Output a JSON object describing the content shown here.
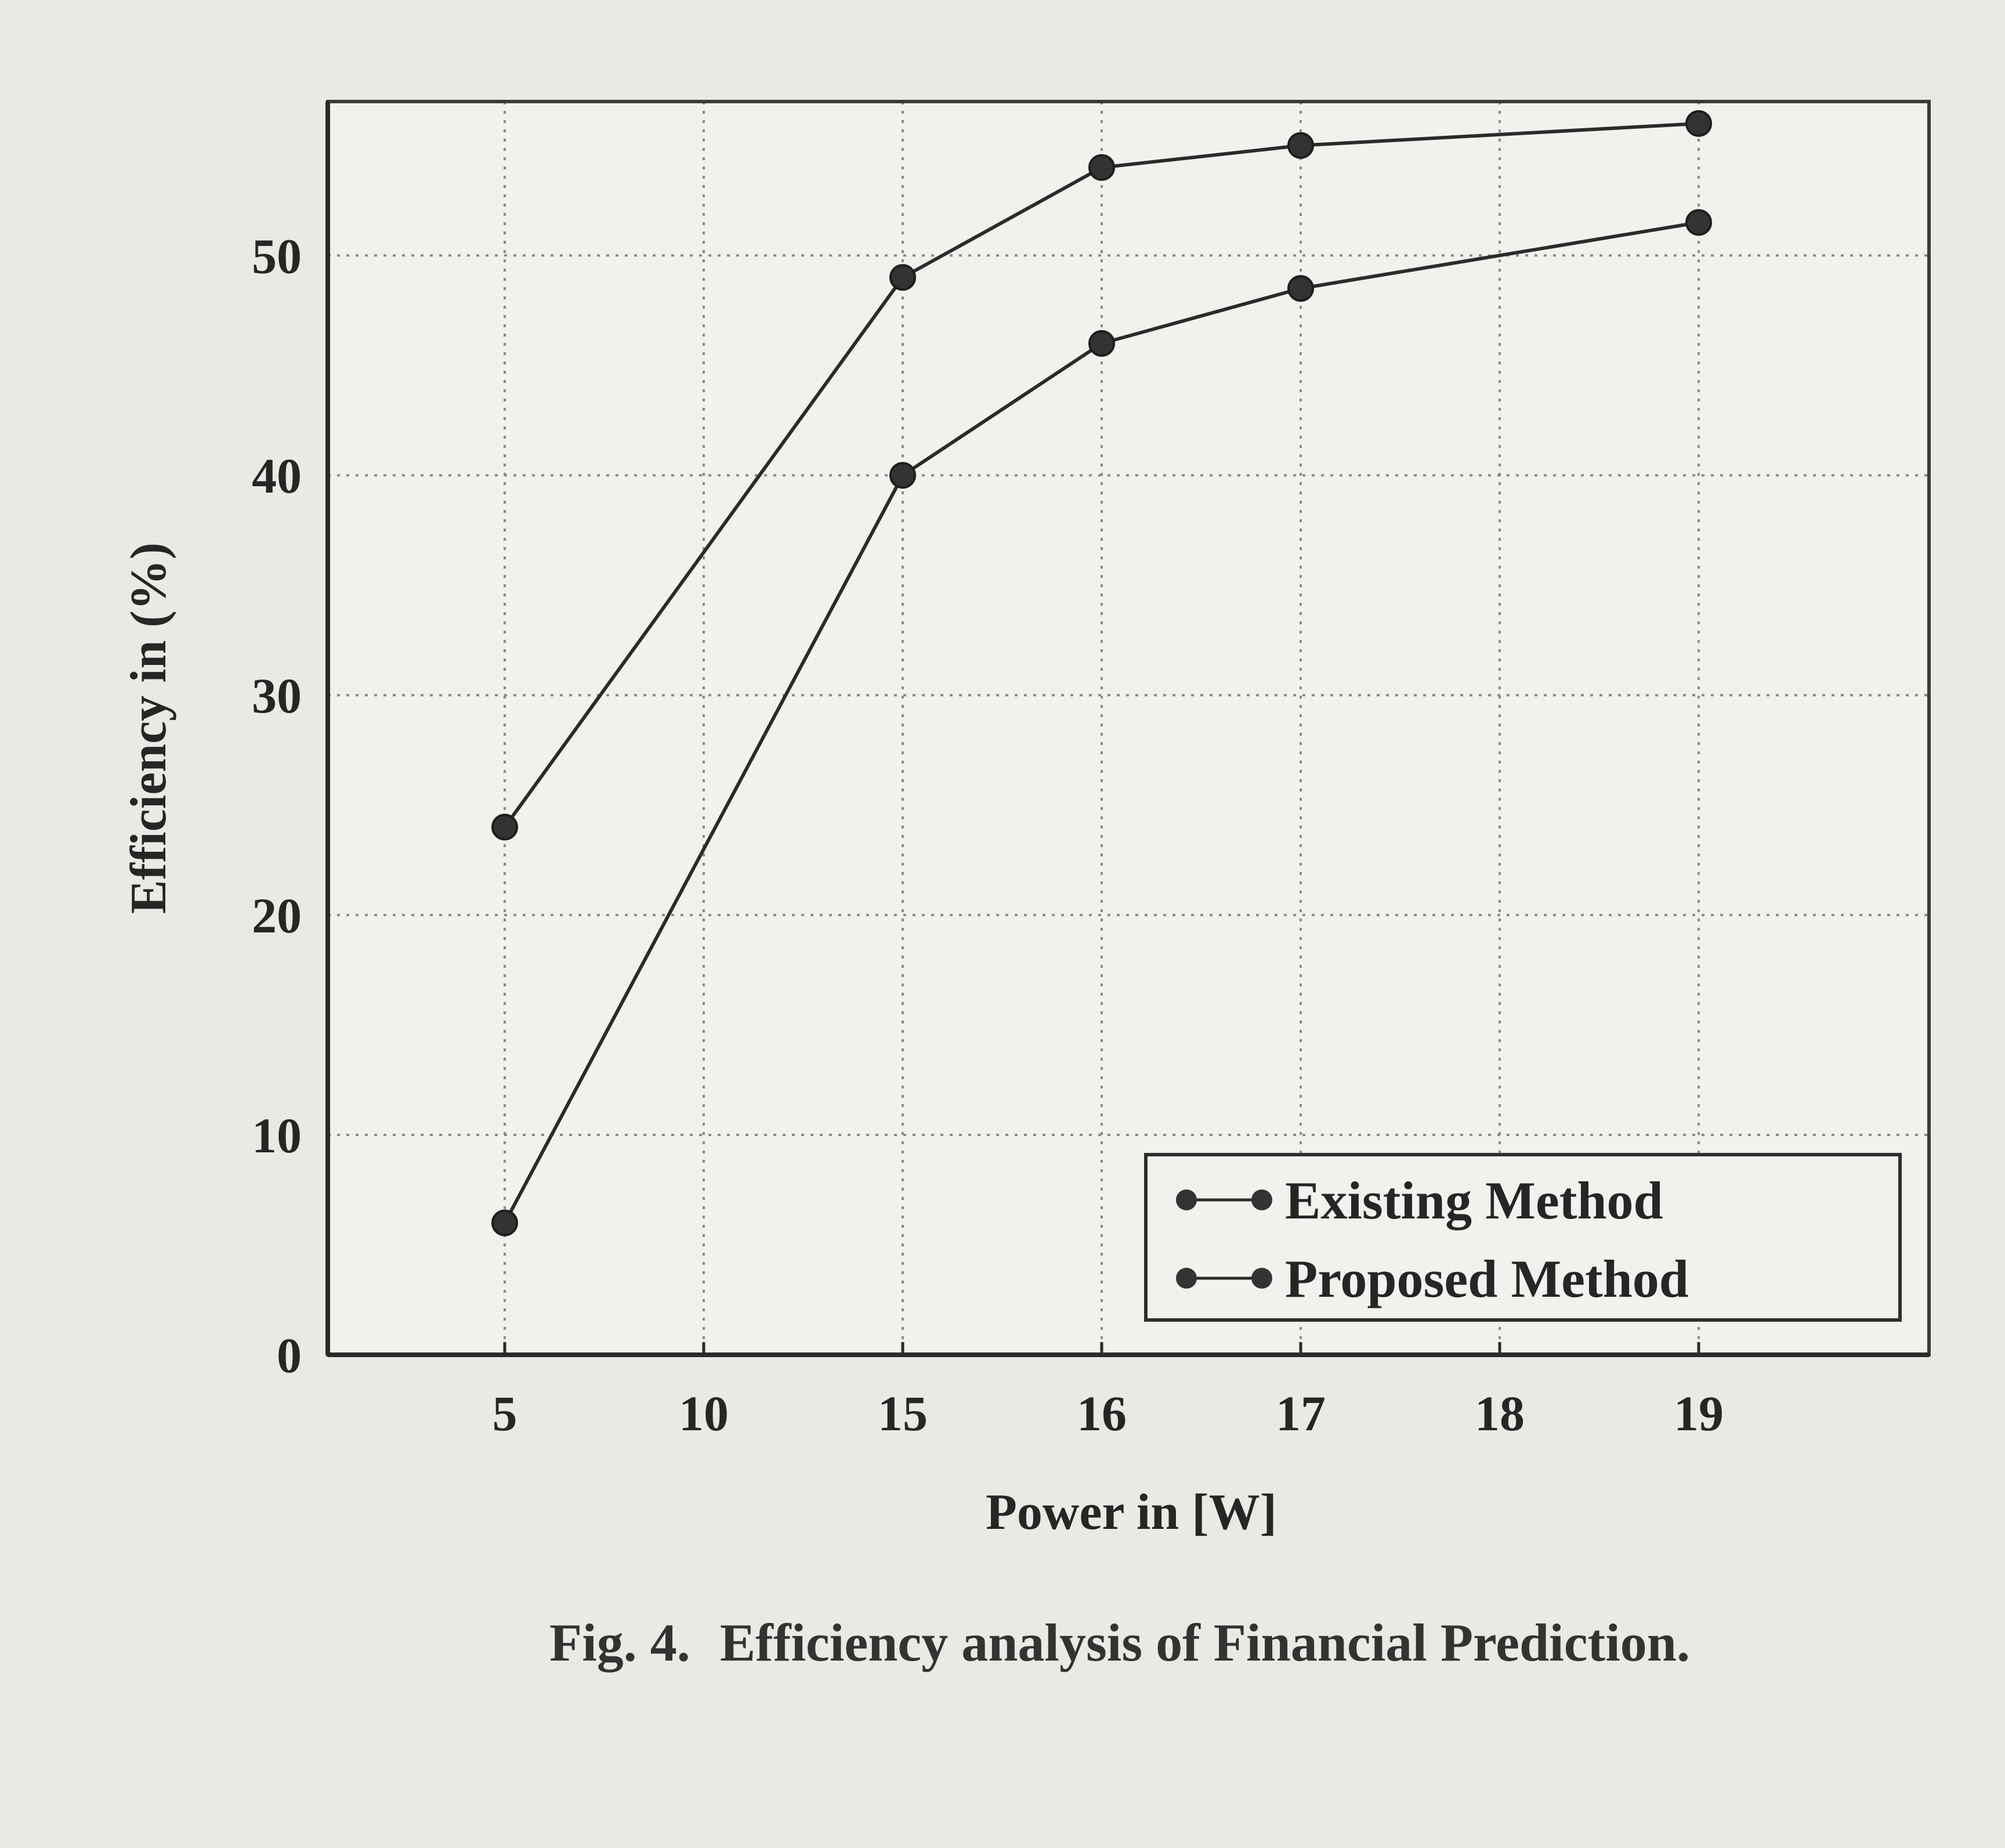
{
  "chart_data": {
    "type": "line",
    "title": "",
    "xlabel": "Power in [W]",
    "ylabel": "Efficiency in (%)",
    "x_axis_scale": "categorical (evenly spaced labels)",
    "categories": [
      "5",
      "10",
      "15",
      "16",
      "17",
      "18",
      "19"
    ],
    "yticks": [
      0,
      10,
      20,
      30,
      40,
      50
    ],
    "ylim": [
      0,
      57
    ],
    "grid": true,
    "legend_position": "bottom-right",
    "series": [
      {
        "name": "Existing Method",
        "points": [
          {
            "x": 5,
            "y": 24
          },
          {
            "x": 15,
            "y": 49
          },
          {
            "x": 16,
            "y": 54
          },
          {
            "x": 17,
            "y": 55
          },
          {
            "x": 19,
            "y": 56
          }
        ]
      },
      {
        "name": "Proposed Method",
        "points": [
          {
            "x": 5,
            "y": 6
          },
          {
            "x": 15,
            "y": 40
          },
          {
            "x": 16,
            "y": 46
          },
          {
            "x": 17,
            "y": 48.5
          },
          {
            "x": 19,
            "y": 51.5
          }
        ]
      }
    ],
    "colors": {
      "line": "#2b2b2b",
      "marker": "#333333",
      "grid": "#8a8a8a",
      "background": "#ebe9e4"
    }
  },
  "caption": {
    "label": "Fig. 4.",
    "text": "Efficiency analysis of Financial Prediction."
  }
}
